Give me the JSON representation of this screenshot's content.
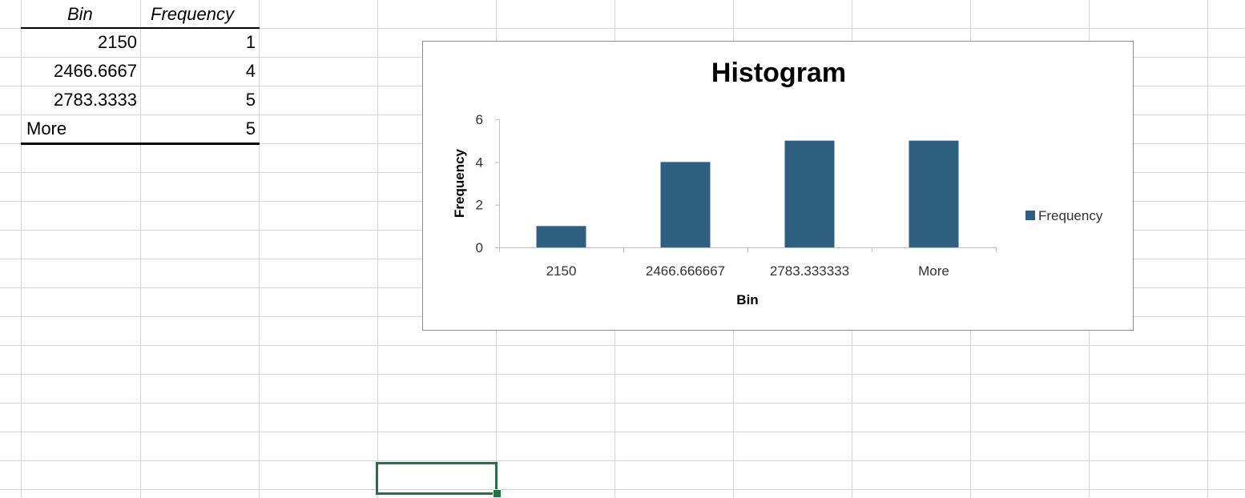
{
  "table": {
    "headers": {
      "bin": "Bin",
      "frequency": "Frequency"
    },
    "rows": [
      {
        "bin": "2150",
        "frequency": "1"
      },
      {
        "bin": "2466.6667",
        "frequency": "4"
      },
      {
        "bin": "2783.3333",
        "frequency": "5"
      },
      {
        "bin": "More",
        "frequency": "5"
      }
    ]
  },
  "chart_data": {
    "type": "bar",
    "title": "Histogram",
    "xlabel": "Bin",
    "ylabel": "Frequency",
    "categories": [
      "2150",
      "2466.666667",
      "2783.333333",
      "More"
    ],
    "series": [
      {
        "name": "Frequency",
        "values": [
          1,
          4,
          5,
          5
        ],
        "color": "#2e5f80"
      }
    ],
    "ylim": [
      0,
      6
    ],
    "yticks": [
      0,
      2,
      4,
      6
    ],
    "grid": false,
    "legend": "right"
  },
  "colors": {
    "gridline": "#d4d4d4",
    "selection": "#217346",
    "bar": "#2e5f80"
  }
}
